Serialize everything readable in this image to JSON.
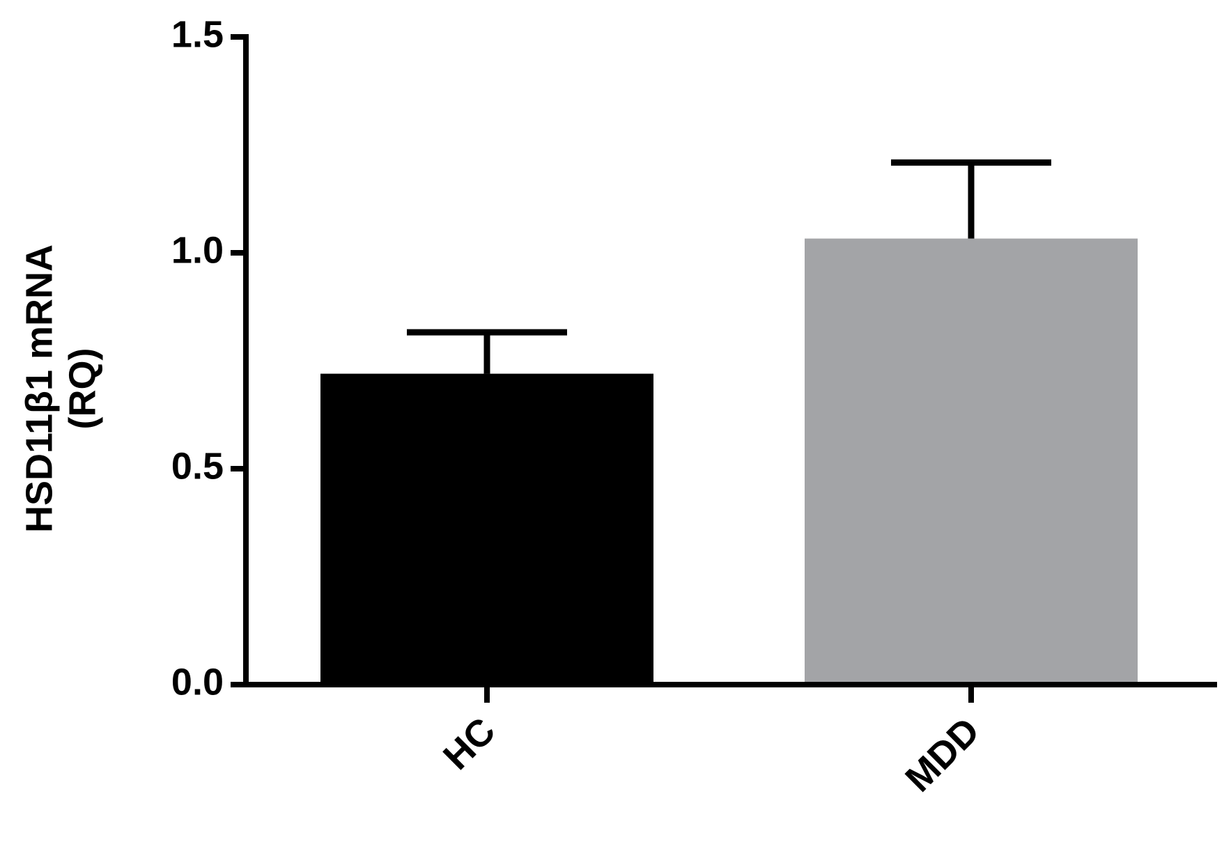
{
  "chart_data": {
    "type": "bar",
    "ylabel": [
      "HSD11β1 mRNA",
      "(RQ)"
    ],
    "categories": [
      "HC",
      "MDD"
    ],
    "values": [
      0.72,
      1.033
    ],
    "errors": [
      0.096,
      0.176
    ],
    "colors": [
      "#000000",
      "#a3a4a7"
    ],
    "ylim": [
      0,
      1.5
    ],
    "yticks": [
      {
        "value": 0,
        "label": "0.0"
      },
      {
        "value": 0.5,
        "label": "0.5"
      },
      {
        "value": 1,
        "label": "1.0"
      },
      {
        "value": 1.5,
        "label": "1.5"
      }
    ]
  }
}
